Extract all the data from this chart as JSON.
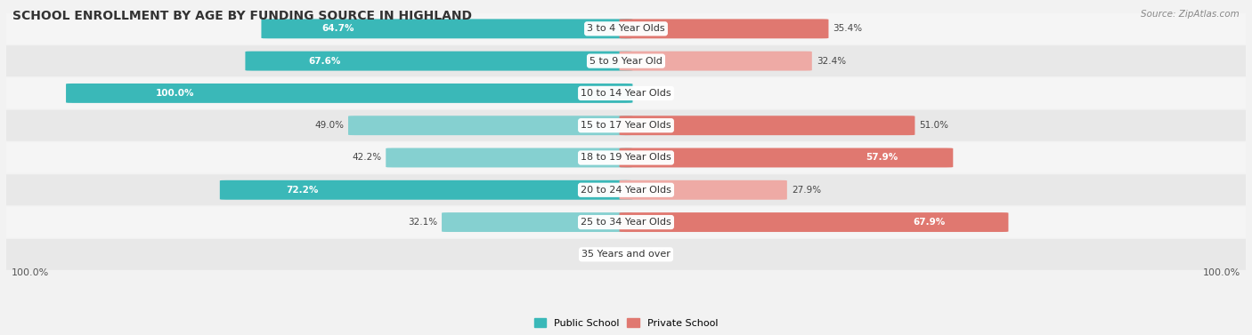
{
  "title": "SCHOOL ENROLLMENT BY AGE BY FUNDING SOURCE IN HIGHLAND",
  "source": "Source: ZipAtlas.com",
  "categories": [
    "3 to 4 Year Olds",
    "5 to 9 Year Old",
    "10 to 14 Year Olds",
    "15 to 17 Year Olds",
    "18 to 19 Year Olds",
    "20 to 24 Year Olds",
    "25 to 34 Year Olds",
    "35 Years and over"
  ],
  "public_values": [
    64.7,
    67.6,
    100.0,
    49.0,
    42.2,
    72.2,
    32.1,
    0.0
  ],
  "private_values": [
    35.4,
    32.4,
    0.0,
    51.0,
    57.9,
    27.9,
    67.9,
    0.0
  ],
  "public_color_dark": "#3ab8b8",
  "public_color_light": "#85d0d0",
  "private_color_dark": "#e07870",
  "private_color_light": "#eeaaa5",
  "bg_odd": "#f5f5f5",
  "bg_even": "#e8e8e8",
  "legend_public": "Public School",
  "legend_private": "Private School",
  "left_label": "100.0%",
  "right_label": "100.0%",
  "title_fontsize": 10,
  "source_fontsize": 7.5,
  "label_fontsize": 8,
  "category_fontsize": 8,
  "value_fontsize": 7.5,
  "pub_dark_threshold": 0.5,
  "priv_dark_threshold": 0.35
}
